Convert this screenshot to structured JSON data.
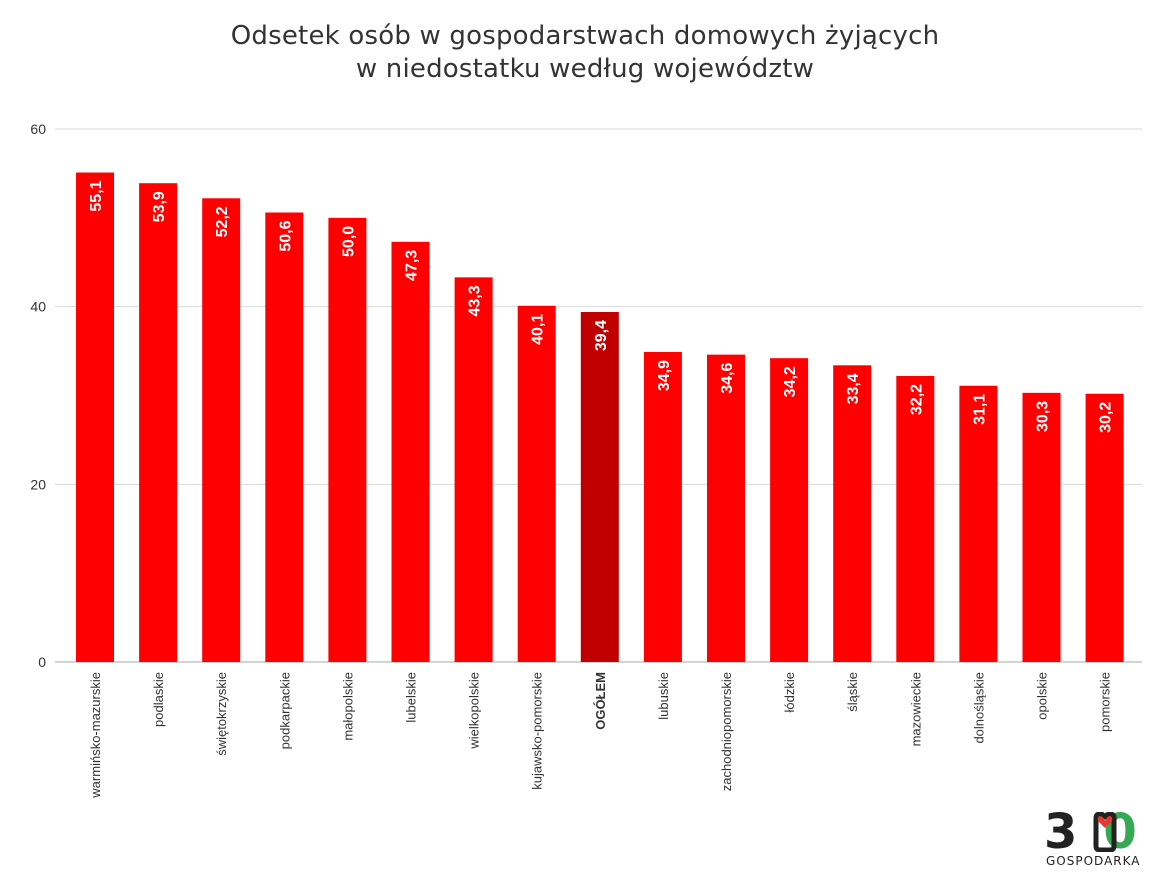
{
  "chart_data": {
    "type": "bar",
    "title_lines": [
      "Odsetek osób w gospodarstwach domowych żyjących",
      "w niedostatku według województw"
    ],
    "categories": [
      "warmińsko-mazurskie",
      "podlaskie",
      "świętokrzyskie",
      "podkarpackie",
      "małopolskie",
      "lubelskie",
      "wielkopolskie",
      "kujawsko-pomorskie",
      "OGÓŁEM",
      "lubuskie",
      "zachodniopomorskie",
      "łódzkie",
      "śląskie",
      "mazowieckie",
      "dolnośląskie",
      "opolskie",
      "pomorskie"
    ],
    "values": [
      55.1,
      53.9,
      52.2,
      50.6,
      50.0,
      47.3,
      43.3,
      40.1,
      39.4,
      34.9,
      34.6,
      34.2,
      33.4,
      32.2,
      31.1,
      30.3,
      30.2
    ],
    "value_labels": [
      "55,1",
      "53,9",
      "52,2",
      "50,6",
      "50,0",
      "47,3",
      "43,3",
      "40,1",
      "39,4",
      "34,9",
      "34,6",
      "34,2",
      "33,4",
      "32,2",
      "31,1",
      "30,3",
      "30,2"
    ],
    "highlight_category": "OGÓŁEM",
    "ylim": [
      0,
      60
    ],
    "yticks": [
      0,
      20,
      40,
      60
    ],
    "grid": true,
    "xlabel": "",
    "ylabel": "",
    "colors": {
      "bar": "#ff0000",
      "highlight": "#c00000",
      "label": "#ffffff",
      "grid": "#d9d9d9",
      "axis_text": "#333333"
    }
  },
  "logo": {
    "number": "300",
    "subtitle": "GOSPODARKA",
    "colors": {
      "dark": "#222222",
      "accent_red": "#e53935",
      "accent_green": "#34a853"
    }
  }
}
